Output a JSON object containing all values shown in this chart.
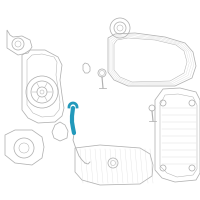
{
  "bg_color": "#ffffff",
  "lc": "#b0b0b0",
  "lc2": "#c8c8c8",
  "hc": "#2299bb",
  "lw": 0.55,
  "lw2": 0.35
}
